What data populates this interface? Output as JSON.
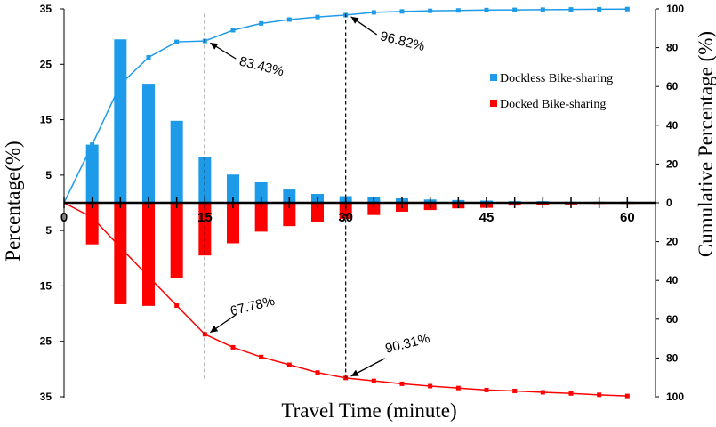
{
  "chart_data": {
    "type": "bar",
    "x_categories": [
      0,
      3,
      6,
      9,
      12,
      15,
      18,
      21,
      24,
      27,
      30,
      33,
      36,
      39,
      42,
      45,
      48,
      51,
      54,
      57,
      60
    ],
    "x_tick_labels": [
      "0",
      "15",
      "30",
      "45",
      "60"
    ],
    "x_tick_values": [
      0,
      15,
      30,
      45,
      60
    ],
    "xlabel": "Travel Time (minute)",
    "ylabel_left": "Percentage(%)",
    "ylabel_right": "Cumulative Percentage (%)",
    "left_tick_labels": [
      "35",
      "25",
      "15",
      "5",
      "5",
      "15",
      "25",
      "35"
    ],
    "right_tick_labels": [
      "100",
      "80",
      "60",
      "40",
      "20",
      "0",
      "20",
      "40",
      "60",
      "80",
      "100"
    ],
    "ylim_left": [
      -35,
      35
    ],
    "ylim_right": [
      -100,
      100
    ],
    "series": [
      {
        "name": "Dockless Bike-sharing",
        "color": "#1e9be8",
        "bar_x": [
          3,
          6,
          9,
          12,
          15,
          18,
          21,
          24,
          27,
          30,
          33,
          36,
          39,
          42,
          45,
          48,
          51,
          54,
          57,
          60
        ],
        "bar_values": [
          10.5,
          29.5,
          21.5,
          14.8,
          8.3,
          5.1,
          3.7,
          2.4,
          1.6,
          1.2,
          1.0,
          0.8,
          0.6,
          0.5,
          0.4,
          0.3,
          0.3,
          0.2,
          0.2,
          0.2
        ],
        "cumulative_x": [
          0,
          3,
          6,
          9,
          12,
          15,
          18,
          21,
          24,
          27,
          30,
          33,
          36,
          39,
          42,
          45,
          48,
          51,
          54,
          57,
          60
        ],
        "cumulative_values": [
          0,
          30,
          61,
          75,
          83,
          83.43,
          89,
          92.5,
          94.5,
          95.8,
          96.82,
          98.2,
          98.7,
          99.0,
          99.2,
          99.4,
          99.5,
          99.6,
          99.7,
          99.8,
          99.9
        ]
      },
      {
        "name": "Docked Bike-sharing",
        "color": "#ff0000",
        "bar_x": [
          3,
          6,
          9,
          12,
          15,
          18,
          21,
          24,
          27,
          30,
          33,
          36,
          39,
          42,
          45,
          48,
          51,
          54,
          57,
          60
        ],
        "bar_values": [
          -7.5,
          -18.3,
          -18.6,
          -13.5,
          -9.5,
          -7.3,
          -5.2,
          -4.2,
          -3.5,
          -2.9,
          -2.2,
          -1.6,
          -1.3,
          -1.0,
          -0.9,
          -0.5,
          -0.4,
          -0.3,
          -0.2,
          -0.2
        ],
        "cumulative_x": [
          0,
          3,
          6,
          9,
          12,
          15,
          18,
          21,
          24,
          27,
          30,
          33,
          36,
          39,
          42,
          45,
          48,
          51,
          54,
          57,
          60
        ],
        "cumulative_values": [
          0,
          -7.5,
          -23,
          -38,
          -53,
          -67.78,
          -74.5,
          -79.5,
          -83.5,
          -87.5,
          -90.31,
          -91.8,
          -93.3,
          -94.5,
          -95.5,
          -96.5,
          -97.0,
          -97.7,
          -98.3,
          -99.0,
          -99.6
        ]
      }
    ],
    "annotations": [
      {
        "text": "96.82%",
        "x": 30,
        "y_cumulative": 96.82
      },
      {
        "text": "83.43%",
        "x": 15,
        "y_cumulative": 83.43
      },
      {
        "text": "67.78%",
        "x": 15,
        "y_cumulative": -67.78
      },
      {
        "text": "90.31%",
        "x": 30,
        "y_cumulative": -90.31
      }
    ],
    "reference_lines_x": [
      15,
      30
    ],
    "legend_position": "right"
  }
}
